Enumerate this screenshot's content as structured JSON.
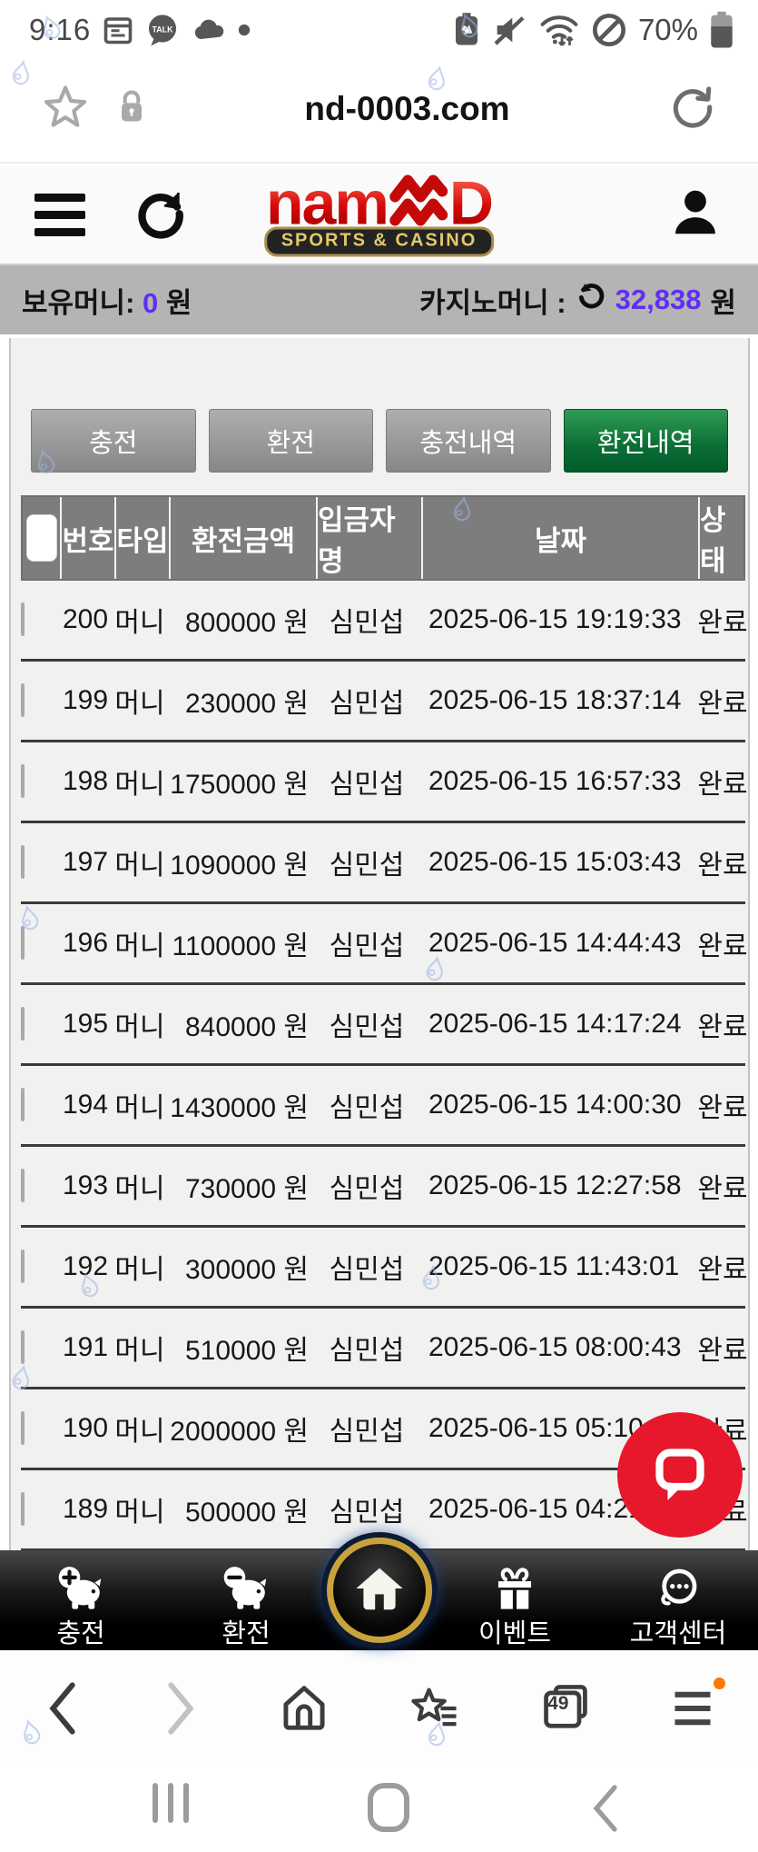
{
  "status_bar": {
    "time": "9:16",
    "battery_percent": "70%",
    "left_icons": [
      "calendar-icon",
      "kakaotalk-icon",
      "cloud-icon",
      "notification-dot"
    ],
    "right_icons": [
      "battery-saver-icon",
      "mute-icon",
      "wifi-arrows-icon",
      "blocked-icon",
      "battery-icon"
    ]
  },
  "address_bar": {
    "url": "nd-0003.com"
  },
  "site_header": {
    "logo_left": "nam",
    "logo_right": "D",
    "logo_badge": "SPORTS & CASINO",
    "logo_color": "#d40909"
  },
  "money_bar": {
    "held_label": "보유머니:",
    "held_value": "0",
    "held_unit": "원",
    "casino_label": "카지노머니 :",
    "casino_value": "32,838",
    "casino_unit": "원",
    "value_color": "#5f2ef5"
  },
  "action_buttons": [
    {
      "label": "충전",
      "active": false
    },
    {
      "label": "환전",
      "active": false
    },
    {
      "label": "충전내역",
      "active": false
    },
    {
      "label": "환전내역",
      "active": true,
      "active_color": "#0b6d35"
    }
  ],
  "table": {
    "headers": [
      "번호",
      "타입",
      "환전금액",
      "입금자명",
      "날짜",
      "상태"
    ],
    "rows": [
      {
        "no": "200",
        "type": "머니",
        "amount": "800000",
        "unit": "원",
        "name": "심민섭",
        "date": "2025-06-15 19:19:33",
        "status": "완료"
      },
      {
        "no": "199",
        "type": "머니",
        "amount": "230000",
        "unit": "원",
        "name": "심민섭",
        "date": "2025-06-15 18:37:14",
        "status": "완료"
      },
      {
        "no": "198",
        "type": "머니",
        "amount": "1750000",
        "unit": "원",
        "name": "심민섭",
        "date": "2025-06-15 16:57:33",
        "status": "완료"
      },
      {
        "no": "197",
        "type": "머니",
        "amount": "1090000",
        "unit": "원",
        "name": "심민섭",
        "date": "2025-06-15 15:03:43",
        "status": "완료"
      },
      {
        "no": "196",
        "type": "머니",
        "amount": "1100000",
        "unit": "원",
        "name": "심민섭",
        "date": "2025-06-15 14:44:43",
        "status": "완료"
      },
      {
        "no": "195",
        "type": "머니",
        "amount": "840000",
        "unit": "원",
        "name": "심민섭",
        "date": "2025-06-15 14:17:24",
        "status": "완료"
      },
      {
        "no": "194",
        "type": "머니",
        "amount": "1430000",
        "unit": "원",
        "name": "심민섭",
        "date": "2025-06-15 14:00:30",
        "status": "완료"
      },
      {
        "no": "193",
        "type": "머니",
        "amount": "730000",
        "unit": "원",
        "name": "심민섭",
        "date": "2025-06-15 12:27:58",
        "status": "완료"
      },
      {
        "no": "192",
        "type": "머니",
        "amount": "300000",
        "unit": "원",
        "name": "심민섭",
        "date": "2025-06-15 11:43:01",
        "status": "완료"
      },
      {
        "no": "191",
        "type": "머니",
        "amount": "510000",
        "unit": "원",
        "name": "심민섭",
        "date": "2025-06-15 08:00:43",
        "status": "완료"
      },
      {
        "no": "190",
        "type": "머니",
        "amount": "2000000",
        "unit": "원",
        "name": "심민섭",
        "date": "2025-06-15 05:10",
        "status": "완료"
      },
      {
        "no": "189",
        "type": "머니",
        "amount": "500000",
        "unit": "원",
        "name": "심민섭",
        "date": "2025-06-15 04:21",
        "status": "완료"
      }
    ]
  },
  "chat_fab": {
    "icon": "chat-bubble-icon",
    "color": "#e8182c"
  },
  "bottom_nav": {
    "items": [
      {
        "label": "충전",
        "icon": "piggy-plus-icon"
      },
      {
        "label": "환전",
        "icon": "piggy-minus-icon"
      },
      {
        "label": "이벤트",
        "icon": "gift-icon"
      },
      {
        "label": "고객센터",
        "icon": "headset-chat-icon"
      }
    ],
    "home_icon": "home-icon",
    "home_ring_color": "#c9a23c"
  },
  "browser_nav": {
    "tab_count": "49",
    "menu_badge_color": "#ff7800"
  }
}
